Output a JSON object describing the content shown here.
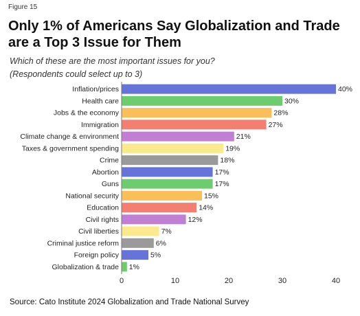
{
  "figure_label": "Figure 15",
  "title": "Only 1% of Americans Say Globalization and Trade are a Top 3 Issue for Them",
  "subtitle_line1": "Which of these are the most important issues for you?",
  "subtitle_line2": "(Respondents could select up to 3)",
  "source": "Source: Cato Institute 2024 Globalization and Trade National Survey",
  "chart_data": {
    "type": "bar",
    "orientation": "horizontal",
    "categories": [
      "Inflation/prices",
      "Health care",
      "Jobs & the economy",
      "Immigration",
      "Climate change & environment",
      "Taxes & government spending",
      "Crime",
      "Abortion",
      "Guns",
      "National security",
      "Education",
      "Civil rights",
      "Civil liberties",
      "Criminal justice reform",
      "Foreign policy",
      "Globalization & trade"
    ],
    "values": [
      40,
      30,
      28,
      27,
      21,
      19,
      18,
      17,
      17,
      15,
      14,
      12,
      7,
      6,
      5,
      1
    ],
    "value_labels": [
      "40%",
      "30%",
      "28%",
      "27%",
      "21%",
      "19%",
      "18%",
      "17%",
      "17%",
      "15%",
      "14%",
      "12%",
      "7%",
      "6%",
      "5%",
      "1%"
    ],
    "colors": [
      "#6674d9",
      "#6dcc6d",
      "#fbbf5a",
      "#f27f6f",
      "#c17fd3",
      "#fbe98e",
      "#9a9a9a",
      "#6674d9",
      "#6dcc6d",
      "#fbbf5a",
      "#f27f6f",
      "#c17fd3",
      "#fbe98e",
      "#9a9a9a",
      "#6674d9",
      "#6dcc6d"
    ],
    "xlim": [
      0,
      40
    ],
    "xticks": [
      "0",
      "10",
      "20",
      "30",
      "40"
    ],
    "grid": false,
    "legend": "none"
  }
}
